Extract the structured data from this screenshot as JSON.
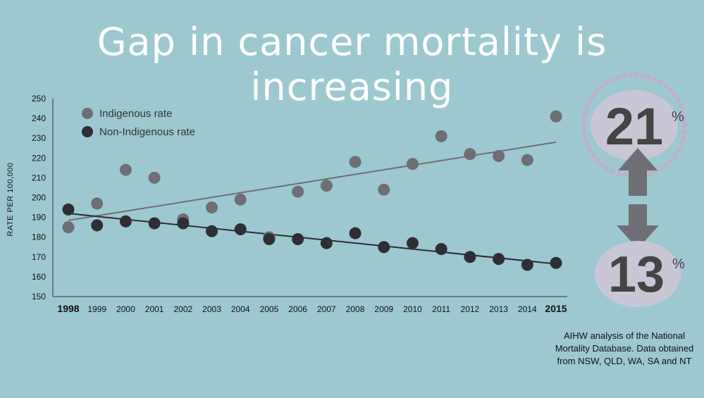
{
  "title": "Gap in cancer mortality is increasing",
  "source_note": "AIHW analysis of the National Mortality Database. Data obtained from NSW, QLD, WA, SA and NT",
  "gap_callout": {
    "top_value": "21",
    "bottom_value": "13",
    "unit": "%"
  },
  "colors": {
    "background": "#9dc8d0",
    "indigenous": "#6e6e73",
    "non_indigenous": "#2e2e33",
    "circle_fill": "#c9c7d6",
    "arrow": "#6f6f75"
  },
  "chart_data": {
    "type": "scatter",
    "title": "",
    "xlabel": "",
    "ylabel": "RATE PER 100,000",
    "x": [
      "1998",
      "1999",
      "2000",
      "2001",
      "2002",
      "2003",
      "2004",
      "2005",
      "2006",
      "2007",
      "2008",
      "2009",
      "2010",
      "2011",
      "2012",
      "2013",
      "2014",
      "2015"
    ],
    "bold_ticks": [
      "1998",
      "2015"
    ],
    "ylim": [
      150,
      250
    ],
    "yticks": [
      150,
      160,
      170,
      180,
      190,
      200,
      210,
      220,
      230,
      240,
      250
    ],
    "legend_position": "top-left",
    "grid": false,
    "series": [
      {
        "name": "Indigenous rate",
        "values": [
          185,
          197,
          214,
          210,
          189,
          195,
          199,
          180,
          203,
          206,
          218,
          204,
          217,
          231,
          222,
          221,
          219,
          241
        ],
        "trend": [
          188.5,
          228
        ]
      },
      {
        "name": "Non-Indigenous rate",
        "values": [
          194,
          186,
          188,
          187,
          187,
          183,
          184,
          179,
          179,
          177,
          182,
          175,
          177,
          174,
          170,
          169,
          166,
          167
        ],
        "trend": [
          192,
          166.5
        ]
      }
    ]
  }
}
